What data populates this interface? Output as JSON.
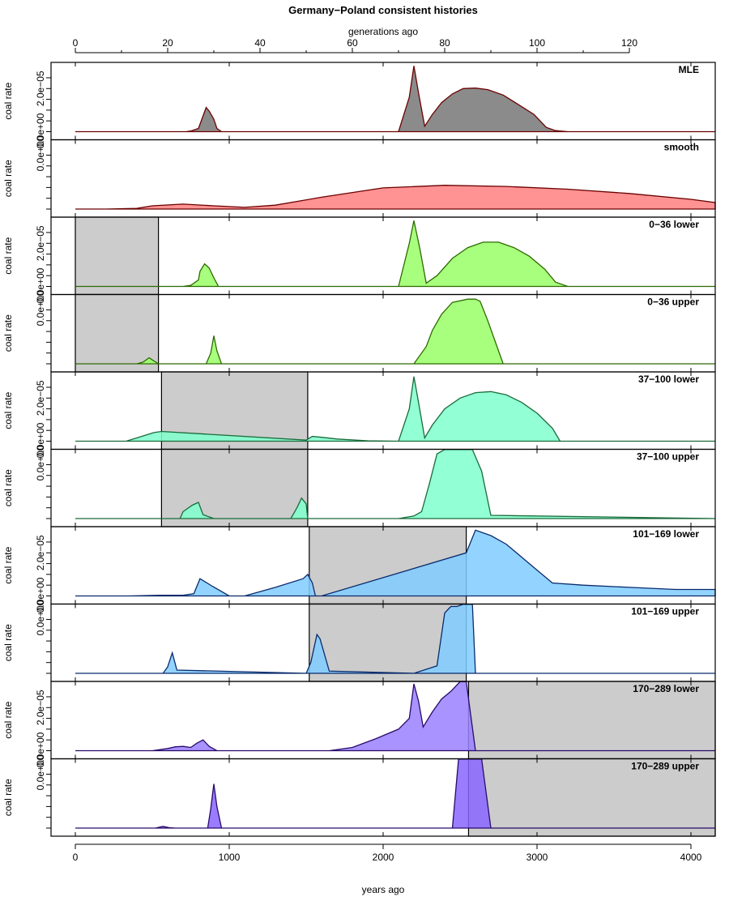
{
  "chart_data": {
    "type": "area",
    "title": "Germany−Poland consistent histories",
    "xlabel": "years ago",
    "x2label": "generations ago",
    "ylabel": "coal rate",
    "xlim": [
      0,
      4170
    ],
    "ylim": [
      0,
      3.1e-05
    ],
    "x_ticks": [
      0,
      1000,
      2000,
      3000,
      4000
    ],
    "x_tick_labels": [
      "0",
      "1000",
      "2000",
      "3000",
      "4000"
    ],
    "top_ticks": [
      0,
      20,
      40,
      60,
      80,
      100,
      120
    ],
    "top_tick_labels": [
      "0",
      "20",
      "40",
      "60",
      "80",
      "100",
      "120"
    ],
    "y_tick_labels": [
      "0.0e+00",
      "2.0e−05"
    ],
    "panels": [
      {
        "label": "MLE",
        "color": "#777777",
        "stroke": "#6b0000",
        "mask": null,
        "x": [
          0,
          1000,
          720,
          750,
          800,
          850,
          870,
          900,
          920,
          950,
          1800,
          2100,
          2170,
          2200,
          2230,
          2270,
          2320,
          2380,
          2450,
          2520,
          2600,
          2680,
          2780,
          2880,
          2980,
          3060,
          3120,
          3200,
          3500,
          4170
        ],
        "values": [
          0,
          0,
          0,
          3e-07,
          1.5e-06,
          1.12e-05,
          9.5e-06,
          5.8e-06,
          1.5e-06,
          0,
          0,
          0,
          1.6e-05,
          3.05e-05,
          1.8e-05,
          2.5e-06,
          8e-06,
          1.35e-05,
          1.75e-05,
          2e-05,
          2.02e-05,
          1.95e-05,
          1.7e-05,
          1.25e-05,
          8e-06,
          2e-06,
          5e-07,
          0,
          0,
          0
        ]
      },
      {
        "label": "smooth",
        "color": "#ff7f7f",
        "stroke": "#6b0000",
        "mask": null,
        "x": [
          0,
          200,
          400,
          500,
          700,
          900,
          1100,
          1300,
          1600,
          2000,
          2400,
          2800,
          3200,
          3600,
          4000,
          4170
        ],
        "values": [
          0,
          0,
          3e-07,
          1.5e-06,
          2.3e-06,
          1.5e-06,
          8e-07,
          1.8e-06,
          5.5e-06,
          9.8e-06,
          1.1e-05,
          1.05e-05,
          9.2e-06,
          7.2e-06,
          4.5e-06,
          3e-06
        ]
      },
      {
        "label": "0−36 lower",
        "color": "#99ff66",
        "stroke": "#2d6b00",
        "mask": [
          0,
          540
        ],
        "x": [
          0,
          700,
          750,
          800,
          810,
          840,
          870,
          900,
          930,
          1800,
          2100,
          2170,
          2200,
          2240,
          2280,
          2350,
          2450,
          2550,
          2650,
          2750,
          2850,
          2950,
          3050,
          3120,
          3200,
          4170
        ],
        "values": [
          0,
          0,
          5e-07,
          3e-06,
          7e-06,
          1.05e-05,
          8.5e-06,
          4e-06,
          0,
          0,
          0,
          2e-05,
          3.05e-05,
          1.7e-05,
          1.5e-06,
          5e-06,
          1.3e-05,
          1.8e-05,
          2.05e-05,
          2.05e-05,
          1.8e-05,
          1.4e-05,
          8e-06,
          2e-06,
          0,
          0
        ]
      },
      {
        "label": "0−36 upper",
        "color": "#99ff66",
        "stroke": "#2d6b00",
        "mask": [
          0,
          540
        ],
        "x": [
          0,
          400,
          440,
          480,
          500,
          540,
          700,
          850,
          880,
          900,
          920,
          950,
          1800,
          2200,
          2280,
          2320,
          2380,
          2450,
          2550,
          2600,
          2630,
          2680,
          2720,
          2780,
          4170
        ],
        "values": [
          0,
          0,
          8e-07,
          2.8e-06,
          1.8e-06,
          0,
          0,
          0,
          5e-06,
          1.3e-05,
          6e-06,
          0,
          0,
          0,
          8e-06,
          1.55e-05,
          2.3e-05,
          2.85e-05,
          3e-05,
          3e-05,
          2.9e-05,
          2e-05,
          1.2e-05,
          0,
          0
        ]
      },
      {
        "label": "37−100 lower",
        "color": "#7fffcc",
        "stroke": "#1a6b3a",
        "mask": [
          560,
          1510
        ],
        "x": [
          0,
          330,
          420,
          510,
          560,
          1500,
          1540,
          1600,
          1700,
          1900,
          2100,
          2170,
          2200,
          2230,
          2270,
          2320,
          2400,
          2500,
          2600,
          2700,
          2800,
          2900,
          3000,
          3100,
          3150,
          4170
        ],
        "values": [
          0,
          0,
          2e-06,
          4e-06,
          4.5e-06,
          5e-07,
          2.2e-06,
          1.8e-06,
          1e-06,
          2e-07,
          0,
          1.5e-05,
          3e-05,
          1.8e-05,
          1.5e-06,
          7.5e-06,
          1.5e-05,
          2e-05,
          2.25e-05,
          2.3e-05,
          2.15e-05,
          1.8e-05,
          1.3e-05,
          6e-06,
          0,
          0
        ]
      },
      {
        "label": "37−100 upper",
        "color": "#7fffcc",
        "stroke": "#1a6b3a",
        "mask": [
          560,
          1510
        ],
        "x": [
          0,
          680,
          700,
          760,
          800,
          830,
          900,
          1400,
          1440,
          1470,
          1500,
          1510,
          2100,
          2200,
          2250,
          2300,
          2350,
          2400,
          2500,
          2580,
          2640,
          2700,
          4170
        ],
        "values": [
          0,
          0,
          3.2e-06,
          6.2e-06,
          7.5e-06,
          1.8e-06,
          0,
          0,
          5e-06,
          9.5e-06,
          6.8e-06,
          0,
          0,
          1.2e-06,
          3.2e-06,
          1.6e-05,
          3e-05,
          3.2e-05,
          3.2e-05,
          3.2e-05,
          2.2e-05,
          1.5e-06,
          0
        ]
      },
      {
        "label": "101−169 lower",
        "color": "#7fccff",
        "stroke": "#0a2a6b",
        "mask": [
          1520,
          2540
        ],
        "x": [
          0,
          350,
          550,
          700,
          770,
          810,
          890,
          1000,
          1100,
          1300,
          1480,
          1510,
          1540,
          1560,
          1600,
          2540,
          2600,
          2700,
          2800,
          2900,
          3000,
          3100,
          3300,
          3600,
          3900,
          4170
        ],
        "values": [
          0,
          0,
          3e-07,
          3e-07,
          1e-06,
          8e-06,
          4.5e-06,
          0,
          0,
          4e-06,
          8e-06,
          1e-05,
          6e-06,
          0,
          0,
          2e-05,
          3.05e-05,
          2.8e-05,
          2.4e-05,
          1.8e-05,
          1.2e-05,
          6e-06,
          5e-06,
          4e-06,
          3e-06,
          3e-06
        ]
      },
      {
        "label": "101−169 upper",
        "color": "#7fccff",
        "stroke": "#0a2a6b",
        "mask": [
          1520,
          2540
        ],
        "x": [
          0,
          570,
          600,
          630,
          660,
          1500,
          1530,
          1570,
          1590,
          1650,
          2200,
          2350,
          2400,
          2440,
          2480,
          2520,
          2580,
          2600,
          4170
        ],
        "values": [
          0,
          0,
          3e-06,
          9.5e-06,
          1.5e-06,
          0,
          5e-06,
          1.8e-05,
          1.6e-05,
          1e-06,
          0,
          3.5e-06,
          2.8e-05,
          3.1e-05,
          3.1e-05,
          3.2e-05,
          3.2e-05,
          0,
          0
        ]
      },
      {
        "label": "170−289 lower",
        "color": "#9980ff",
        "stroke": "#2a0a6b",
        "mask": [
          2555,
          4170
        ],
        "x": [
          0,
          500,
          600,
          650,
          700,
          750,
          790,
          830,
          870,
          920,
          1650,
          1800,
          1950,
          2100,
          2170,
          2200,
          2230,
          2260,
          2320,
          2380,
          2440,
          2500,
          2540,
          2600,
          4170
        ],
        "values": [
          0,
          0,
          1e-06,
          1.8e-06,
          2e-06,
          1.5e-06,
          3.5e-06,
          5e-06,
          2e-06,
          0,
          0,
          1.5e-06,
          5.5e-06,
          1e-05,
          1.5e-05,
          3.1e-05,
          2.3e-05,
          1.1e-05,
          1.8e-05,
          2.4e-05,
          2.75e-05,
          3.2e-05,
          3.2e-05,
          0,
          0
        ]
      },
      {
        "label": "170−289 upper",
        "color": "#8866ff",
        "stroke": "#2a0a6b",
        "mask": [
          2555,
          4170
        ],
        "x": [
          0,
          520,
          570,
          610,
          650,
          860,
          880,
          900,
          920,
          950,
          2450,
          2490,
          2520,
          2580,
          2640,
          2700,
          4170
        ],
        "values": [
          0,
          0,
          8e-07,
          2e-07,
          0,
          0,
          9e-06,
          2.05e-05,
          1e-05,
          0,
          0,
          3.2e-05,
          3.2e-05,
          3.2e-05,
          3.2e-05,
          0,
          0
        ]
      }
    ]
  }
}
